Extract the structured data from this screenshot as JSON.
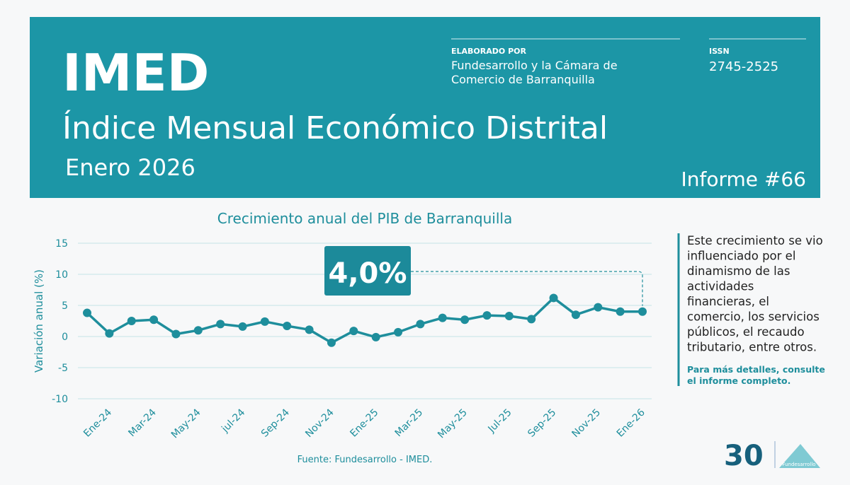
{
  "header": {
    "title": "IMED",
    "subtitle": "Índice Mensual Económico Distrital",
    "period": "Enero 2026",
    "elaborated_label": "ELABORADO POR",
    "elaborated_lines": [
      "Fundesarrollo y la Cámara de",
      "Comercio de Barranquilla"
    ],
    "issn_label": "ISSN",
    "issn": "2745-2525",
    "report": "Informe #66"
  },
  "chart_data": {
    "type": "line",
    "title": "Crecimiento anual del PIB de Barranquilla",
    "y_label": "Variación anual (%)",
    "categories": [
      null,
      "Ene-24",
      null,
      "Mar-24",
      null,
      "May-24",
      null,
      "jul-24",
      null,
      "Sep-24",
      null,
      "Nov-24",
      null,
      "Ene-25",
      null,
      "Mar-25",
      null,
      "May-25",
      null,
      "Jul-25",
      null,
      "Sep-25",
      null,
      "Nov-25",
      null,
      "Ene-26"
    ],
    "series": [
      {
        "name": "PIB",
        "color": "#1e8e9c",
        "values": [
          3.8,
          0.5,
          2.5,
          2.7,
          0.4,
          1.0,
          2.0,
          1.6,
          2.4,
          1.7,
          1.1,
          -1.0,
          0.9,
          -0.1,
          0.7,
          2.0,
          3.0,
          2.7,
          3.4,
          3.3,
          2.8,
          6.2,
          3.5,
          4.7,
          4.0,
          4.0
        ]
      }
    ],
    "ylim": [
      -10,
      15
    ],
    "yticks": [
      -10,
      -5,
      0,
      5,
      10,
      15
    ],
    "grid": true,
    "annotation": "4,0%",
    "source": "Fuente: Fundesarrollo - IMED."
  },
  "sidebar": {
    "lines": [
      "Este crecimiento se vio",
      "influenciado por el",
      "dinamismo de las",
      "actividades",
      "financieras, el",
      "comercio, los servicios",
      "públicos, el recaudo",
      "tributario, entre otros."
    ],
    "note_lines": [
      "Para más detalles, consulte",
      "el informe completo."
    ]
  },
  "logo": {
    "number": "30",
    "name": "Fundesarrollo"
  }
}
